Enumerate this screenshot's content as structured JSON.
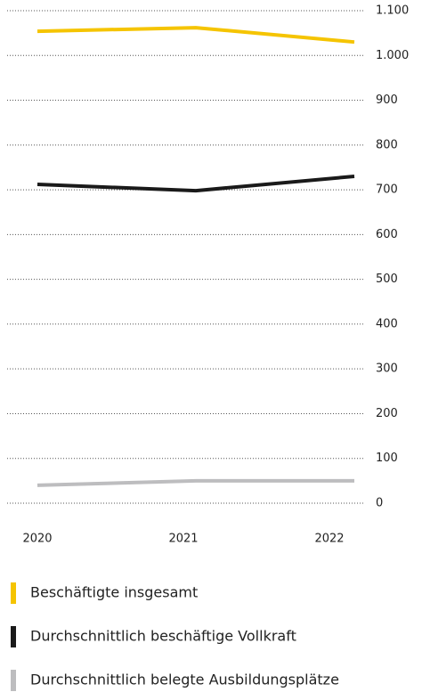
{
  "chart_data": {
    "type": "line",
    "x": [
      "2020",
      "2021",
      "2022"
    ],
    "series": [
      {
        "name": "Beschäftigte insgesamt",
        "color": "#f5c400",
        "values": [
          1054,
          1062,
          1030
        ]
      },
      {
        "name": "Durchschnittlich beschäftige Vollkraft",
        "color": "#1a1a1a",
        "values": [
          712,
          698,
          730
        ]
      },
      {
        "name": "Durchschnittlich belegte Ausbildungsplätze",
        "color": "#bdbdbf",
        "values": [
          40,
          50,
          50
        ]
      }
    ],
    "ylim": [
      0,
      1100
    ],
    "yticks": [
      0,
      100,
      200,
      300,
      400,
      500,
      600,
      700,
      800,
      900,
      {
        "value": 1000,
        "label": "1.000"
      },
      {
        "value": 1100,
        "label": "1.100"
      }
    ],
    "grid": true
  }
}
